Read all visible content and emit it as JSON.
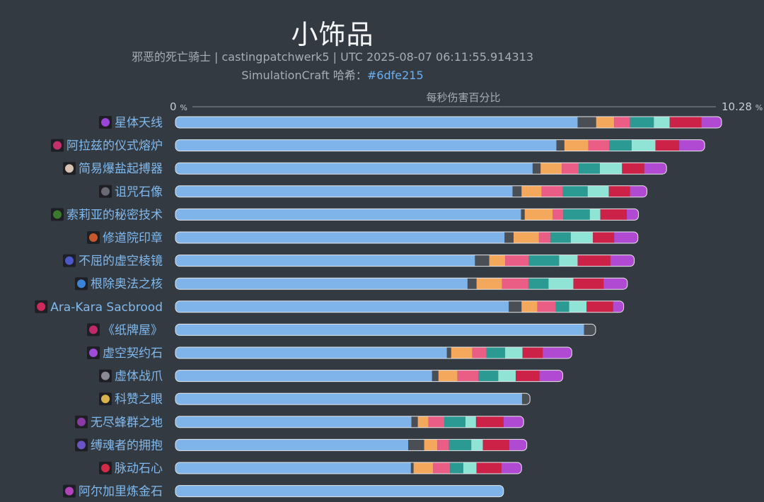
{
  "header": {
    "title": "小饰品",
    "subtitle": "邪恶的死亡骑士 | castingpatchwerk5 | UTC 2025-08-07 06:11:55.914313",
    "hash_prefix": "SimulationCraft 哈希：",
    "hash_value": "#6dfe215"
  },
  "chart_data": {
    "type": "bar",
    "orientation": "horizontal",
    "stacked": true,
    "xlabel": "每秒伤害百分比",
    "xlim": [
      0,
      10.28
    ],
    "tick_labels": [
      {
        "value": 0,
        "text": "0",
        "unit": "%"
      },
      {
        "value": 10.28,
        "text": "10.28",
        "unit": "%"
      }
    ],
    "segment_colors": [
      "#7fb4ea",
      "#4a4e55",
      "#f4a85c",
      "#ea5e86",
      "#2a9a92",
      "#8fe4d6",
      "#cc2248",
      "#b04ad2"
    ],
    "categories": [
      {
        "label": "星体天线",
        "icon": "star-antenna-icon",
        "icon_color": "#9a44d8",
        "segments": [
          7.6,
          0.35,
          0.34,
          0.3,
          0.45,
          0.3,
          0.6,
          0.38
        ]
      },
      {
        "label": "阿拉兹的仪式熔炉",
        "icon": "ritual-forge-icon",
        "icon_color": "#c4306c",
        "segments": [
          7.2,
          0.15,
          0.45,
          0.4,
          0.42,
          0.45,
          0.45,
          0.48
        ]
      },
      {
        "label": "简易爆盐起搏器",
        "icon": "salt-pacemaker-icon",
        "icon_color": "#d8c2b4",
        "segments": [
          6.75,
          0.15,
          0.4,
          0.32,
          0.4,
          0.42,
          0.42,
          0.42
        ]
      },
      {
        "label": "诅咒石像",
        "icon": "cursed-statue-icon",
        "icon_color": "#6a6a74",
        "segments": [
          6.37,
          0.17,
          0.38,
          0.4,
          0.47,
          0.4,
          0.4,
          0.32
        ]
      },
      {
        "label": "索莉亚的秘密技术",
        "icon": "secret-technique-icon",
        "icon_color": "#3a7a2c",
        "segments": [
          6.53,
          0.07,
          0.53,
          0.2,
          0.5,
          0.2,
          0.5,
          0.22
        ]
      },
      {
        "label": "修道院印章",
        "icon": "abbey-seal-icon",
        "icon_color": "#c8582c",
        "segments": [
          6.22,
          0.17,
          0.48,
          0.22,
          0.38,
          0.42,
          0.4,
          0.45
        ]
      },
      {
        "label": "不屈的虚空棱镜",
        "icon": "void-prism-icon",
        "icon_color": "#4a58c8",
        "segments": [
          5.66,
          0.27,
          0.3,
          0.45,
          0.57,
          0.35,
          0.62,
          0.45
        ]
      },
      {
        "label": "根除奥法之核",
        "icon": "arcane-core-icon",
        "icon_color": "#3a84d8",
        "segments": [
          5.52,
          0.17,
          0.48,
          0.5,
          0.38,
          0.47,
          0.57,
          0.45
        ]
      },
      {
        "label": "Ara-Kara Sacbrood",
        "icon": "sacbrood-icon",
        "icon_color": "#cc2a5a",
        "segments": [
          6.3,
          0.24,
          0.3,
          0.35,
          0.25,
          0.33,
          0.5,
          0.2
        ]
      },
      {
        "label": "《纸牌屋》",
        "icon": "card-house-icon",
        "icon_color": "#c02a6a",
        "segments": [
          7.72,
          0.22,
          0,
          0,
          0,
          0,
          0,
          0
        ]
      },
      {
        "label": "虚空契约石",
        "icon": "void-pact-stone-icon",
        "icon_color": "#a04ad8",
        "segments": [
          5.13,
          0.08,
          0.4,
          0.27,
          0.35,
          0.33,
          0.38,
          0.55
        ]
      },
      {
        "label": "虚体战爪",
        "icon": "phantom-claw-icon",
        "icon_color": "#8a8a94",
        "segments": [
          4.85,
          0.12,
          0.36,
          0.4,
          0.37,
          0.33,
          0.45,
          0.44
        ]
      },
      {
        "label": "科赞之眼",
        "icon": "kezan-eye-icon",
        "icon_color": "#d8b44a",
        "segments": [
          6.55,
          0.15,
          0,
          0,
          0,
          0,
          0,
          0
        ]
      },
      {
        "label": "无尽蜂群之地",
        "icon": "endless-swarm-icon",
        "icon_color": "#8a3aa4",
        "segments": [
          4.46,
          0.12,
          0.2,
          0.3,
          0.4,
          0.2,
          0.52,
          0.38
        ]
      },
      {
        "label": "缚魂者的拥抱",
        "icon": "soulbinder-embrace-icon",
        "icon_color": "#6a54c4",
        "segments": [
          4.4,
          0.3,
          0.25,
          0.22,
          0.42,
          0.22,
          0.5,
          0.33
        ]
      },
      {
        "label": "脉动石心",
        "icon": "pulsing-stone-heart-icon",
        "icon_color": "#d42a4a",
        "segments": [
          4.45,
          0.05,
          0.37,
          0.32,
          0.25,
          0.25,
          0.47,
          0.38
        ]
      },
      {
        "label": "阿尔加里炼金石",
        "icon": "algari-alchemist-stone-icon",
        "icon_color": "#b044b8",
        "segments": [
          6.2,
          0,
          0,
          0,
          0,
          0,
          0,
          0
        ]
      }
    ]
  }
}
